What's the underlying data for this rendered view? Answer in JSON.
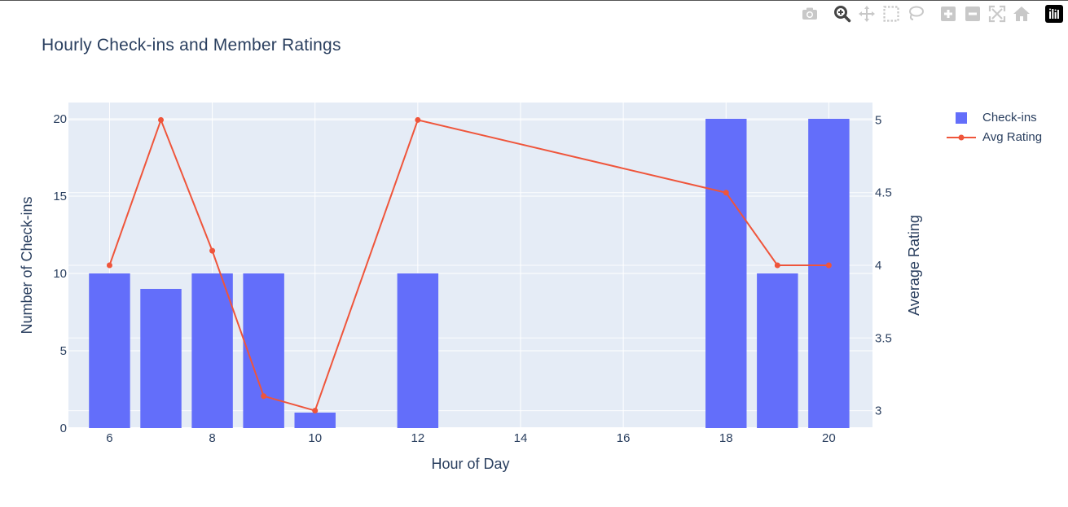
{
  "toolbar": {
    "buttons": [
      {
        "name": "camera-icon",
        "tooltip": "Download plot as a png"
      },
      {
        "name": "zoom-icon",
        "tooltip": "Zoom"
      },
      {
        "name": "pan-icon",
        "tooltip": "Pan"
      },
      {
        "name": "box-select-icon",
        "tooltip": "Box Select"
      },
      {
        "name": "lasso-select-icon",
        "tooltip": "Lasso Select"
      },
      {
        "name": "zoom-in-icon",
        "tooltip": "Zoom in"
      },
      {
        "name": "zoom-out-icon",
        "tooltip": "Zoom out"
      },
      {
        "name": "autoscale-icon",
        "tooltip": "Autoscale"
      },
      {
        "name": "reset-axes-icon",
        "tooltip": "Reset axes"
      },
      {
        "name": "plotly-logo-icon",
        "tooltip": "Produced with Plotly"
      }
    ]
  },
  "chart_data": {
    "type": "bar",
    "title": "Hourly Check-ins and Member Ratings",
    "xlabel": "Hour of Day",
    "ylabel": "Number of Check-ins",
    "y2label": "Average Rating",
    "x_ticks": [
      6,
      8,
      10,
      12,
      14,
      16,
      18,
      20
    ],
    "y_ticks": [
      0,
      5,
      10,
      15,
      20
    ],
    "y2_ticks": [
      3,
      3.5,
      4,
      4.5,
      5
    ],
    "xlim": [
      5.2,
      20.85
    ],
    "ylim": [
      0,
      21.05
    ],
    "y2lim": [
      2.88,
      5.12
    ],
    "grid": true,
    "legend_position": "top-right outside",
    "series": [
      {
        "name": "Check-ins",
        "type": "bar",
        "axis": "y",
        "color": "#636efa",
        "x": [
          6,
          7,
          8,
          9,
          10,
          12,
          18,
          19,
          20
        ],
        "values": [
          10,
          9,
          10,
          10,
          1,
          10,
          20,
          10,
          20
        ]
      },
      {
        "name": "Avg Rating",
        "type": "line+markers",
        "axis": "y2",
        "color": "#ef553b",
        "x": [
          6,
          7,
          8,
          9,
          10,
          12,
          18,
          19,
          20
        ],
        "values": [
          4.0,
          5.0,
          4.1,
          3.1,
          3.0,
          5.0,
          4.5,
          4.0,
          4.0
        ]
      }
    ]
  },
  "colors": {
    "plot_bg": "#e5ecf6",
    "grid": "#ffffff",
    "text": "#2a3f5f",
    "icon": "#c8c8c8"
  }
}
